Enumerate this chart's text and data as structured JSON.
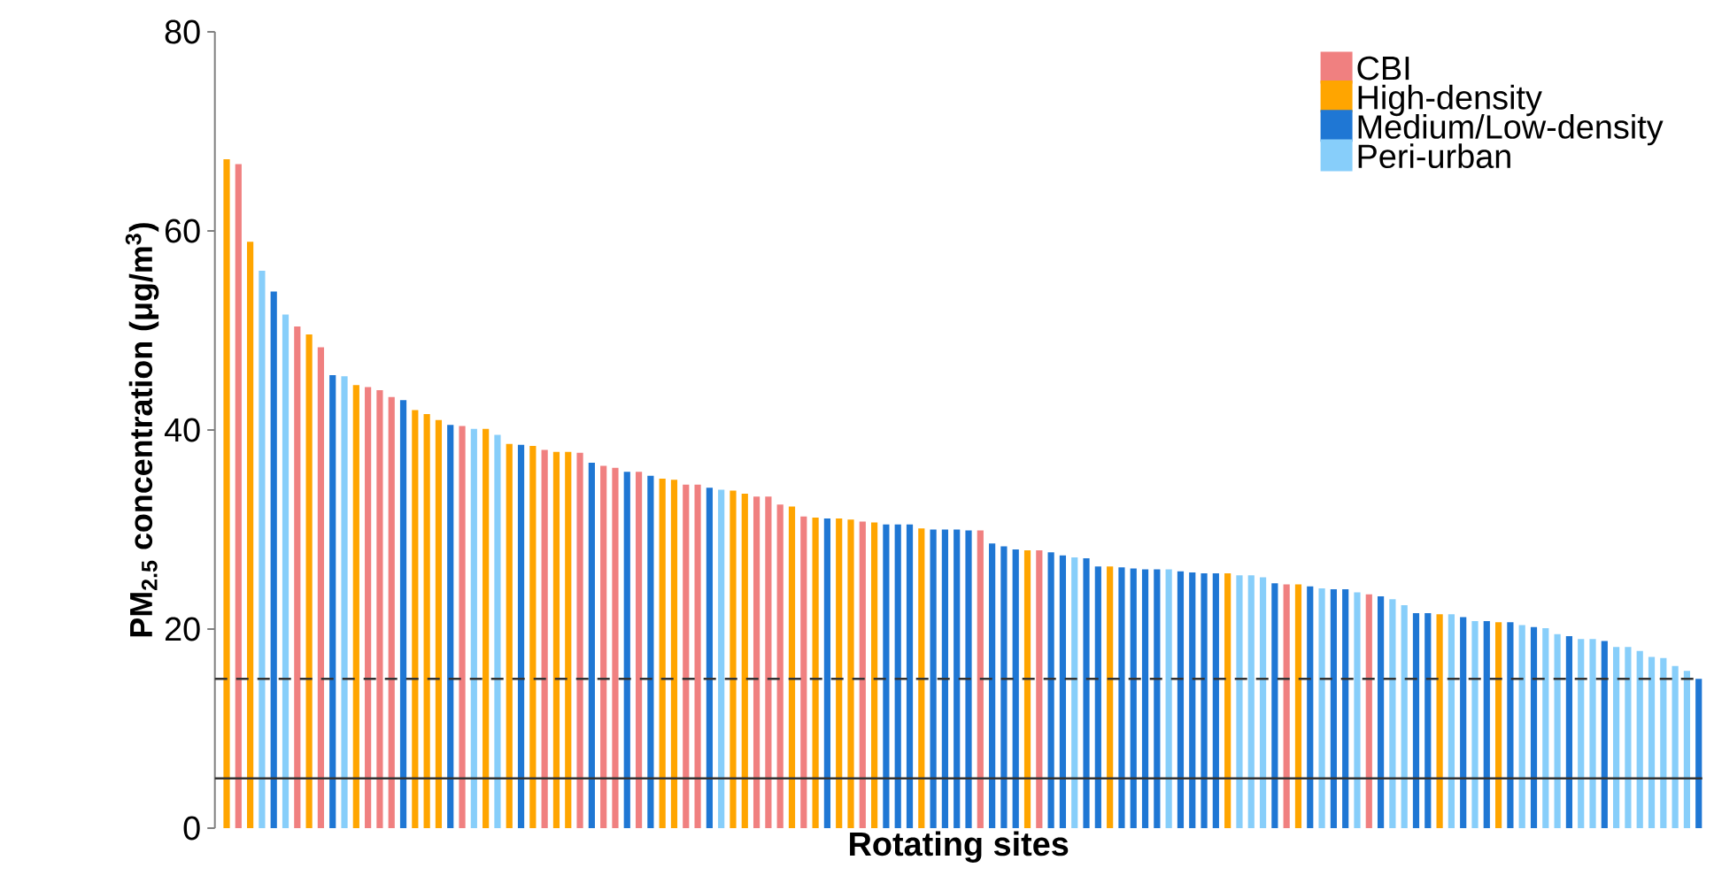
{
  "chart_data": {
    "type": "bar",
    "xlabel": "Rotating sites",
    "ylabel": "PM$_{2.5}$ concentration (μg/m$^{3}$)",
    "categories": [
      null,
      null,
      null,
      null,
      null,
      null,
      null,
      null,
      null,
      null,
      null,
      null,
      null,
      null,
      null,
      null,
      null,
      null,
      null,
      null,
      null,
      null,
      null,
      null,
      null,
      null,
      null,
      null,
      null,
      null,
      null,
      null,
      null,
      null,
      null,
      null,
      null,
      null,
      null,
      null,
      null,
      null,
      null,
      null,
      null,
      null,
      null,
      null,
      null,
      null,
      null,
      null,
      null,
      null,
      null,
      null,
      null,
      null,
      null,
      null,
      null,
      null,
      null,
      null,
      null,
      null,
      null,
      null,
      null,
      null,
      null,
      null,
      null,
      null,
      null,
      null,
      null,
      null,
      null,
      null,
      null,
      null,
      null,
      null,
      null,
      null,
      null,
      null,
      null,
      null,
      null,
      null,
      null,
      null,
      null,
      null,
      null,
      null,
      null,
      null,
      null,
      null,
      null,
      null,
      null,
      null,
      null,
      null,
      null,
      null,
      null,
      null,
      null,
      null,
      null,
      null,
      null,
      null,
      null,
      null,
      null,
      null,
      null,
      null,
      null,
      null
    ],
    "series": [
      {
        "name": "CBI",
        "color": "#f08080",
        "values": [
          null,
          66.7,
          null,
          null,
          null,
          null,
          50.4,
          null,
          48.3,
          null,
          null,
          null,
          44.3,
          44.0,
          43.3,
          null,
          null,
          null,
          null,
          null,
          40.4,
          null,
          null,
          null,
          null,
          null,
          null,
          38.0,
          null,
          null,
          37.7,
          null,
          36.4,
          36.2,
          null,
          35.8,
          null,
          null,
          null,
          34.5,
          34.5,
          null,
          null,
          null,
          null,
          33.3,
          33.3,
          32.5,
          null,
          31.3,
          null,
          null,
          null,
          null,
          30.8,
          null,
          null,
          null,
          null,
          null,
          null,
          null,
          null,
          null,
          29.9,
          null,
          null,
          null,
          null,
          27.9,
          null,
          null,
          null,
          null,
          null,
          null,
          null,
          null,
          null,
          null,
          null,
          null,
          null,
          null,
          null,
          null,
          null,
          null,
          null,
          null,
          24.5,
          null,
          null,
          null,
          null,
          null,
          null,
          23.5,
          null,
          null,
          null,
          null,
          null,
          null,
          null,
          null,
          null,
          null,
          null,
          null,
          null,
          null,
          null,
          null,
          null,
          null,
          null,
          null,
          null,
          null,
          null,
          null,
          null,
          null,
          null,
          null
        ]
      },
      {
        "name": "High-density",
        "color": "#ffa500",
        "values": [
          67.2,
          null,
          58.9,
          null,
          null,
          null,
          null,
          49.6,
          null,
          null,
          null,
          44.5,
          null,
          null,
          null,
          null,
          42.0,
          41.6,
          41.0,
          null,
          null,
          null,
          40.1,
          null,
          38.6,
          null,
          38.4,
          null,
          37.8,
          37.8,
          null,
          null,
          null,
          null,
          null,
          null,
          null,
          35.1,
          35.0,
          null,
          null,
          null,
          null,
          33.9,
          33.6,
          null,
          null,
          null,
          32.3,
          null,
          31.2,
          null,
          31.1,
          31.0,
          null,
          30.7,
          null,
          null,
          null,
          30.1,
          null,
          null,
          null,
          null,
          null,
          null,
          null,
          null,
          27.9,
          null,
          null,
          null,
          null,
          null,
          null,
          26.3,
          null,
          null,
          null,
          null,
          null,
          null,
          null,
          null,
          null,
          25.6,
          null,
          null,
          null,
          null,
          null,
          24.5,
          null,
          null,
          null,
          null,
          null,
          null,
          null,
          null,
          null,
          null,
          null,
          21.5,
          null,
          null,
          null,
          null,
          20.7,
          null,
          null,
          null,
          null,
          null,
          null,
          null,
          null,
          null,
          null,
          null,
          null,
          null,
          null,
          null,
          null,
          null
        ]
      },
      {
        "name": "Medium/Low-density",
        "color": "#1f77d4",
        "values": [
          null,
          null,
          null,
          null,
          53.9,
          null,
          null,
          null,
          null,
          45.5,
          null,
          null,
          null,
          null,
          null,
          43.0,
          null,
          null,
          null,
          40.5,
          null,
          null,
          null,
          null,
          null,
          38.5,
          null,
          null,
          null,
          null,
          null,
          36.7,
          null,
          null,
          35.8,
          null,
          35.4,
          null,
          null,
          null,
          null,
          34.2,
          null,
          null,
          null,
          null,
          null,
          null,
          null,
          null,
          null,
          31.1,
          null,
          null,
          null,
          null,
          30.5,
          30.5,
          30.5,
          null,
          30.0,
          30.0,
          30.0,
          29.9,
          null,
          28.6,
          28.3,
          28.0,
          null,
          null,
          27.7,
          27.4,
          null,
          27.1,
          26.3,
          null,
          26.2,
          26.1,
          26.0,
          26.0,
          null,
          25.8,
          25.7,
          25.6,
          25.6,
          null,
          null,
          null,
          null,
          24.6,
          null,
          null,
          24.3,
          null,
          24.0,
          24.0,
          null,
          null,
          23.3,
          null,
          null,
          21.6,
          21.6,
          null,
          null,
          21.2,
          null,
          20.8,
          null,
          20.7,
          null,
          20.2,
          null,
          null,
          19.3,
          null,
          null,
          18.8,
          null,
          null,
          null,
          null,
          null,
          null,
          null,
          15.0
        ]
      },
      {
        "name": "Peri-urban",
        "color": "#87cefa",
        "values": [
          null,
          null,
          null,
          56.0,
          null,
          51.6,
          null,
          null,
          null,
          null,
          45.4,
          null,
          null,
          null,
          null,
          null,
          null,
          null,
          null,
          null,
          null,
          40.1,
          null,
          39.5,
          null,
          null,
          null,
          null,
          null,
          null,
          null,
          null,
          null,
          null,
          null,
          null,
          null,
          null,
          null,
          null,
          null,
          null,
          34.0,
          null,
          null,
          null,
          null,
          null,
          null,
          null,
          null,
          null,
          null,
          null,
          null,
          null,
          null,
          null,
          null,
          null,
          null,
          null,
          null,
          null,
          null,
          null,
          null,
          null,
          null,
          null,
          null,
          null,
          27.2,
          null,
          null,
          null,
          null,
          null,
          null,
          null,
          26.0,
          null,
          null,
          null,
          null,
          null,
          25.4,
          25.4,
          25.2,
          null,
          null,
          null,
          null,
          24.1,
          null,
          null,
          23.7,
          null,
          null,
          23.0,
          22.4,
          null,
          null,
          null,
          21.5,
          null,
          20.8,
          null,
          null,
          null,
          20.4,
          null,
          20.1,
          19.5,
          null,
          19.0,
          19.0,
          null,
          18.2,
          18.2,
          17.8,
          17.2,
          17.1,
          16.3,
          15.8,
          null
        ]
      }
    ],
    "ylim": [
      0,
      80
    ],
    "yticks": [
      0,
      20,
      40,
      60,
      80
    ],
    "legend": "top right",
    "ref_lines": [
      {
        "axis": "y",
        "value": 15,
        "line_style": "dashed",
        "color": "#333333"
      },
      {
        "axis": "y",
        "value": 5,
        "line_style": "solid",
        "color": "#333333"
      }
    ]
  }
}
